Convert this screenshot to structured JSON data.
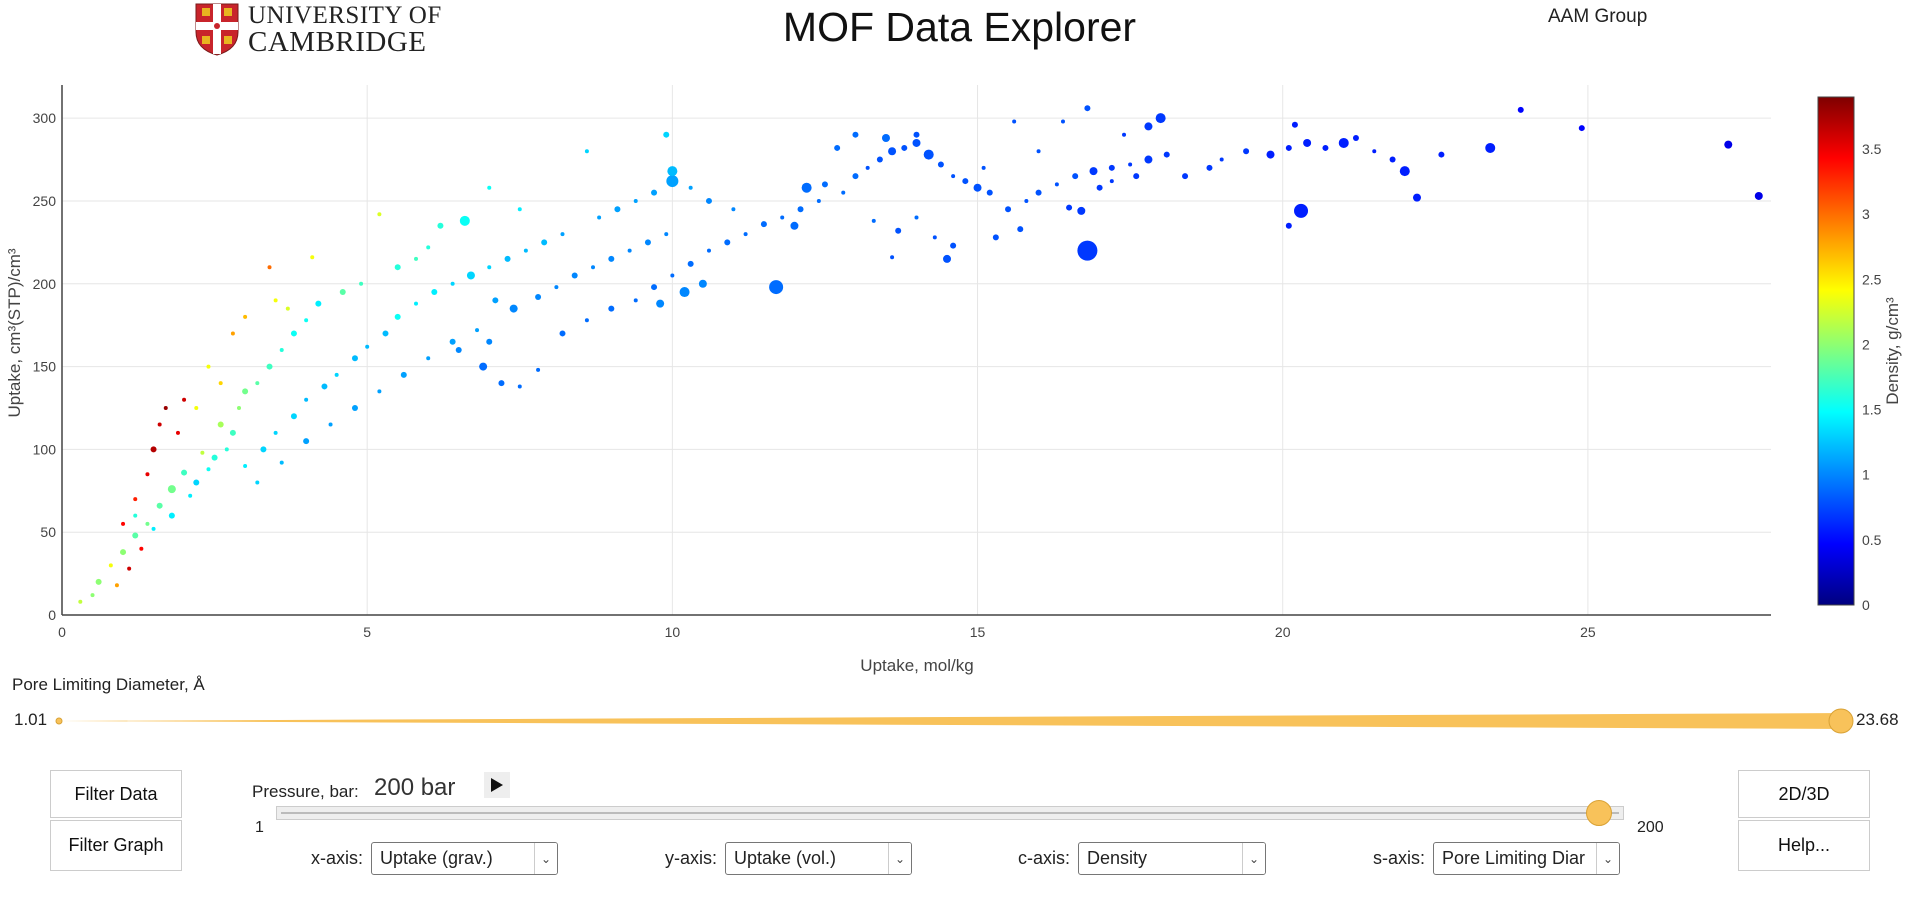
{
  "header": {
    "title": "MOF Data Explorer",
    "group": "AAM Group",
    "logo_line1": "UNIVERSITY OF",
    "logo_line2": "CAMBRIDGE"
  },
  "colors": {
    "accent": "#f8c25a",
    "colorscale": [
      "#00007f",
      "#0000ff",
      "#0080ff",
      "#00ffff",
      "#80ff80",
      "#ffff00",
      "#ff8000",
      "#ff0000",
      "#7f0000"
    ]
  },
  "chart_data": {
    "type": "scatter",
    "xlabel": "Uptake, mol/kg",
    "ylabel": "Uptake, cm³(STP)/cm³",
    "clabel": "Density, g/cm³",
    "xlim": [
      0,
      28
    ],
    "ylim": [
      0,
      320
    ],
    "clim": [
      0,
      3.9
    ],
    "x_ticks": [
      "0",
      "5",
      "10",
      "15",
      "20",
      "25"
    ],
    "y_ticks": [
      "0",
      "50",
      "100",
      "150",
      "200",
      "250",
      "300"
    ],
    "c_ticks": [
      "0",
      "0.5",
      "1",
      "1.5",
      "2",
      "2.5",
      "3",
      "3.5"
    ],
    "grid": true,
    "points": [
      [
        0.3,
        8,
        2.2,
        2
      ],
      [
        0.5,
        12,
        2.0,
        2
      ],
      [
        0.6,
        20,
        2.0,
        3
      ],
      [
        0.8,
        30,
        2.4,
        2
      ],
      [
        1.0,
        38,
        2.0,
        3
      ],
      [
        1.2,
        48,
        1.8,
        3
      ],
      [
        1.4,
        55,
        1.9,
        2
      ],
      [
        1.6,
        66,
        1.8,
        3
      ],
      [
        1.8,
        76,
        1.9,
        4
      ],
      [
        2.0,
        86,
        1.7,
        3
      ],
      [
        1.0,
        55,
        3.4,
        2
      ],
      [
        1.2,
        70,
        3.3,
        2
      ],
      [
        1.4,
        85,
        3.5,
        2
      ],
      [
        1.5,
        100,
        3.7,
        3
      ],
      [
        1.6,
        115,
        3.6,
        2
      ],
      [
        1.7,
        125,
        3.8,
        2
      ],
      [
        1.9,
        110,
        3.5,
        2
      ],
      [
        2.0,
        130,
        3.6,
        2
      ],
      [
        1.3,
        40,
        3.4,
        2
      ],
      [
        1.1,
        28,
        3.6,
        2
      ],
      [
        0.9,
        18,
        2.8,
        2
      ],
      [
        1.2,
        60,
        1.6,
        2
      ],
      [
        1.5,
        52,
        1.4,
        2
      ],
      [
        1.8,
        60,
        1.4,
        3
      ],
      [
        2.1,
        72,
        1.4,
        2
      ],
      [
        2.2,
        80,
        1.3,
        3
      ],
      [
        2.4,
        88,
        1.5,
        2
      ],
      [
        2.5,
        95,
        1.6,
        3
      ],
      [
        2.7,
        100,
        1.6,
        2
      ],
      [
        2.8,
        110,
        1.7,
        3
      ],
      [
        2.3,
        98,
        2.2,
        2
      ],
      [
        2.6,
        115,
        2.1,
        3
      ],
      [
        2.9,
        125,
        2.0,
        2
      ],
      [
        3.0,
        135,
        1.9,
        3
      ],
      [
        3.2,
        140,
        1.8,
        2
      ],
      [
        3.4,
        150,
        1.7,
        3
      ],
      [
        3.6,
        160,
        1.6,
        2
      ],
      [
        3.8,
        170,
        1.5,
        3
      ],
      [
        4.0,
        178,
        1.5,
        2
      ],
      [
        4.2,
        188,
        1.4,
        3
      ],
      [
        2.6,
        140,
        2.6,
        2
      ],
      [
        2.8,
        170,
        2.8,
        2
      ],
      [
        3.0,
        180,
        2.7,
        2
      ],
      [
        3.5,
        190,
        2.4,
        2
      ],
      [
        3.7,
        185,
        2.3,
        2
      ],
      [
        2.4,
        150,
        2.4,
        2
      ],
      [
        2.2,
        125,
        2.4,
        2
      ],
      [
        3.4,
        210,
        3.0,
        2
      ],
      [
        4.1,
        216,
        2.4,
        2
      ],
      [
        5.2,
        242,
        2.3,
        2
      ],
      [
        3.0,
        90,
        1.4,
        2
      ],
      [
        3.3,
        100,
        1.3,
        3
      ],
      [
        3.5,
        110,
        1.3,
        2
      ],
      [
        3.8,
        120,
        1.3,
        3
      ],
      [
        4.0,
        130,
        1.2,
        2
      ],
      [
        4.3,
        138,
        1.2,
        3
      ],
      [
        4.5,
        145,
        1.3,
        2
      ],
      [
        4.8,
        155,
        1.2,
        3
      ],
      [
        5.0,
        162,
        1.2,
        2
      ],
      [
        5.3,
        170,
        1.2,
        3
      ],
      [
        3.2,
        80,
        1.3,
        2
      ],
      [
        3.6,
        92,
        1.2,
        2
      ],
      [
        4.0,
        105,
        1.1,
        3
      ],
      [
        4.4,
        115,
        1.1,
        2
      ],
      [
        4.8,
        125,
        1.1,
        3
      ],
      [
        5.2,
        135,
        1.1,
        2
      ],
      [
        5.6,
        145,
        1.1,
        3
      ],
      [
        6.0,
        155,
        1.1,
        2
      ],
      [
        6.4,
        165,
        1.1,
        3
      ],
      [
        6.8,
        172,
        1.1,
        2
      ],
      [
        5.5,
        180,
        1.5,
        3
      ],
      [
        5.8,
        188,
        1.4,
        2
      ],
      [
        6.1,
        195,
        1.4,
        3
      ],
      [
        6.4,
        200,
        1.3,
        2
      ],
      [
        6.7,
        205,
        1.3,
        4
      ],
      [
        7.0,
        210,
        1.3,
        2
      ],
      [
        7.3,
        215,
        1.2,
        3
      ],
      [
        7.6,
        220,
        1.2,
        2
      ],
      [
        7.9,
        225,
        1.2,
        3
      ],
      [
        8.2,
        230,
        1.1,
        2
      ],
      [
        4.6,
        195,
        1.8,
        3
      ],
      [
        4.9,
        200,
        1.7,
        2
      ],
      [
        5.5,
        210,
        1.6,
        3
      ],
      [
        6.0,
        222,
        1.6,
        2
      ],
      [
        6.6,
        238,
        1.5,
        5
      ],
      [
        7.0,
        258,
        1.5,
        2
      ],
      [
        6.2,
        235,
        1.6,
        3
      ],
      [
        5.8,
        215,
        1.7,
        2
      ],
      [
        7.5,
        245,
        1.4,
        2
      ],
      [
        8.6,
        280,
        1.3,
        2
      ],
      [
        7.1,
        190,
        1.1,
        3
      ],
      [
        7.4,
        185,
        1.0,
        4
      ],
      [
        7.8,
        192,
        1.0,
        3
      ],
      [
        8.1,
        198,
        1.0,
        2
      ],
      [
        8.4,
        205,
        1.0,
        3
      ],
      [
        8.7,
        210,
        1.0,
        2
      ],
      [
        9.0,
        215,
        1.0,
        3
      ],
      [
        9.3,
        220,
        1.0,
        2
      ],
      [
        9.6,
        225,
        1.0,
        3
      ],
      [
        9.9,
        230,
        1.0,
        2
      ],
      [
        6.5,
        160,
        1.0,
        3
      ],
      [
        6.9,
        150,
        0.9,
        4
      ],
      [
        7.2,
        140,
        0.9,
        3
      ],
      [
        7.5,
        138,
        0.9,
        2
      ],
      [
        7.0,
        165,
        1.0,
        3
      ],
      [
        7.8,
        148,
        0.9,
        2
      ],
      [
        8.2,
        170,
        0.9,
        3
      ],
      [
        8.6,
        178,
        0.9,
        2
      ],
      [
        9.0,
        185,
        0.9,
        3
      ],
      [
        9.4,
        190,
        0.9,
        2
      ],
      [
        9.7,
        198,
        0.9,
        3
      ],
      [
        10.0,
        205,
        0.9,
        2
      ],
      [
        10.3,
        212,
        0.9,
        3
      ],
      [
        10.6,
        220,
        0.9,
        2
      ],
      [
        10.9,
        225,
        0.9,
        3
      ],
      [
        11.2,
        230,
        0.9,
        2
      ],
      [
        11.5,
        236,
        0.9,
        3
      ],
      [
        11.8,
        240,
        0.9,
        2
      ],
      [
        12.1,
        245,
        0.9,
        3
      ],
      [
        12.4,
        250,
        0.9,
        2
      ],
      [
        8.8,
        240,
        1.1,
        2
      ],
      [
        9.1,
        245,
        1.1,
        3
      ],
      [
        9.4,
        250,
        1.1,
        2
      ],
      [
        9.7,
        255,
        1.1,
        3
      ],
      [
        10.0,
        262,
        1.1,
        6
      ],
      [
        10.3,
        258,
        1.1,
        2
      ],
      [
        10.0,
        268,
        1.2,
        5
      ],
      [
        9.9,
        290,
        1.3,
        3
      ],
      [
        10.6,
        250,
        1.0,
        3
      ],
      [
        11.0,
        245,
        1.0,
        2
      ],
      [
        9.8,
        188,
        1.0,
        4
      ],
      [
        10.2,
        195,
        1.0,
        5
      ],
      [
        10.5,
        200,
        1.0,
        4
      ],
      [
        11.7,
        198,
        0.9,
        7
      ],
      [
        12.0,
        235,
        0.9,
        4
      ],
      [
        12.2,
        258,
        0.9,
        5
      ],
      [
        12.5,
        260,
        0.9,
        3
      ],
      [
        12.8,
        255,
        0.9,
        2
      ],
      [
        13.0,
        265,
        0.9,
        3
      ],
      [
        13.2,
        270,
        0.8,
        2
      ],
      [
        13.4,
        275,
        0.8,
        3
      ],
      [
        13.6,
        280,
        0.8,
        4
      ],
      [
        13.8,
        282,
        0.8,
        3
      ],
      [
        14.0,
        285,
        0.8,
        4
      ],
      [
        14.2,
        278,
        0.8,
        5
      ],
      [
        14.4,
        272,
        0.8,
        3
      ],
      [
        14.6,
        265,
        0.8,
        2
      ],
      [
        14.8,
        262,
        0.8,
        3
      ],
      [
        15.0,
        258,
        0.8,
        4
      ],
      [
        15.2,
        255,
        0.8,
        3
      ],
      [
        13.0,
        290,
        0.9,
        3
      ],
      [
        13.5,
        288,
        0.9,
        4
      ],
      [
        14.0,
        290,
        0.8,
        3
      ],
      [
        12.7,
        282,
        0.9,
        3
      ],
      [
        13.3,
        238,
        0.9,
        2
      ],
      [
        13.7,
        232,
        0.8,
        3
      ],
      [
        14.3,
        228,
        0.8,
        2
      ],
      [
        13.6,
        216,
        0.8,
        2
      ],
      [
        14.5,
        215,
        0.8,
        4
      ],
      [
        15.3,
        228,
        0.8,
        3
      ],
      [
        15.5,
        245,
        0.8,
        3
      ],
      [
        15.8,
        250,
        0.8,
        2
      ],
      [
        16.0,
        255,
        0.8,
        3
      ],
      [
        16.3,
        260,
        0.8,
        2
      ],
      [
        16.6,
        265,
        0.8,
        3
      ],
      [
        16.9,
        268,
        0.7,
        4
      ],
      [
        17.2,
        270,
        0.7,
        3
      ],
      [
        17.5,
        272,
        0.7,
        2
      ],
      [
        17.8,
        275,
        0.7,
        4
      ],
      [
        18.1,
        278,
        0.7,
        3
      ],
      [
        15.7,
        233,
        0.8,
        3
      ],
      [
        16.5,
        246,
        0.7,
        3
      ],
      [
        16.7,
        244,
        0.7,
        4
      ],
      [
        16.8,
        220,
        0.7,
        10
      ],
      [
        17.0,
        258,
        0.7,
        3
      ],
      [
        17.2,
        262,
        0.7,
        2
      ],
      [
        17.6,
        265,
        0.7,
        3
      ],
      [
        17.8,
        295,
        0.7,
        4
      ],
      [
        18.0,
        300,
        0.7,
        5
      ],
      [
        18.4,
        265,
        0.7,
        3
      ],
      [
        18.8,
        270,
        0.7,
        3
      ],
      [
        19.0,
        275,
        0.7,
        2
      ],
      [
        19.4,
        280,
        0.7,
        3
      ],
      [
        19.8,
        278,
        0.6,
        4
      ],
      [
        20.1,
        282,
        0.6,
        3
      ],
      [
        20.4,
        285,
        0.6,
        4
      ],
      [
        20.7,
        282,
        0.6,
        3
      ],
      [
        21.0,
        285,
        0.6,
        5
      ],
      [
        21.2,
        288,
        0.6,
        3
      ],
      [
        20.3,
        244,
        0.6,
        7
      ],
      [
        20.1,
        235,
        0.6,
        3
      ],
      [
        20.2,
        296,
        0.6,
        3
      ],
      [
        21.5,
        280,
        0.6,
        2
      ],
      [
        21.8,
        275,
        0.6,
        3
      ],
      [
        22.0,
        268,
        0.6,
        5
      ],
      [
        22.2,
        252,
        0.6,
        4
      ],
      [
        22.6,
        278,
        0.6,
        3
      ],
      [
        23.4,
        282,
        0.6,
        5
      ],
      [
        23.9,
        305,
        0.5,
        3
      ],
      [
        24.9,
        294,
        0.5,
        3
      ],
      [
        27.3,
        284,
        0.4,
        4
      ],
      [
        27.8,
        253,
        0.4,
        4
      ],
      [
        16.4,
        298,
        0.8,
        2
      ],
      [
        16.8,
        306,
        0.8,
        3
      ],
      [
        15.6,
        298,
        0.8,
        2
      ],
      [
        14.0,
        240,
        0.9,
        2
      ],
      [
        14.6,
        223,
        0.8,
        3
      ],
      [
        15.1,
        270,
        0.8,
        2
      ],
      [
        16.0,
        280,
        0.8,
        2
      ],
      [
        17.4,
        290,
        0.7,
        2
      ]
    ],
    "sizes": {
      "pld_min": 1.01,
      "pld_max": 23.68
    }
  },
  "pld_slider": {
    "label": "Pore Limiting Diameter, Å",
    "min": "1.01",
    "max": "23.68"
  },
  "pressure": {
    "label": "Pressure, bar:",
    "value": "200 bar",
    "min": "1",
    "max": "200",
    "fraction": 0.99
  },
  "buttons": {
    "filter_data": "Filter Data",
    "filter_graph": "Filter Graph",
    "dimension": "2D/3D",
    "help": "Help..."
  },
  "axes_selectors": {
    "x_label": "x-axis:",
    "x_value": "Uptake (grav.)",
    "y_label": "y-axis:",
    "y_value": "Uptake (vol.)",
    "c_label": "c-axis:",
    "c_value": "Density",
    "s_label": "s-axis:",
    "s_value": "Pore Limiting Diar"
  }
}
